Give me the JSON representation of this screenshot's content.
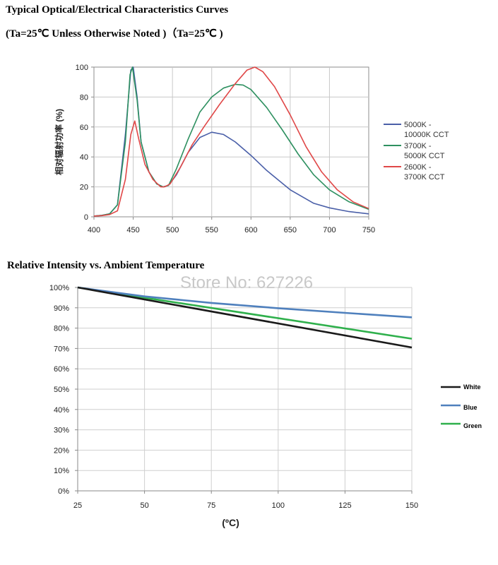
{
  "header": {
    "line1": "Typical Optical/Electrical Characteristics Curves",
    "line2": "(Ta=25℃ Unless Otherwise Noted )（Ta=25℃ )",
    "section2_title": "Relative Intensity vs. Ambient Temperature"
  },
  "watermark": "Store No: 627226",
  "chart_data": [
    {
      "type": "line",
      "title": "",
      "xlabel": "",
      "ylabel": "相对辐射功率 (%)",
      "xlim": [
        400,
        750
      ],
      "ylim": [
        0,
        100
      ],
      "x_ticks": [
        "400",
        "450",
        "500",
        "550",
        "600",
        "650",
        "700",
        "750"
      ],
      "y_ticks": [
        "0",
        "20",
        "40",
        "60",
        "80",
        "100"
      ],
      "grid": true,
      "legend": "right",
      "series": [
        {
          "name": "5000K - 10000K CCT",
          "legend_lines": [
            "5000K -",
            "10000K CCT"
          ],
          "color": "#4a5fa8",
          "points": [
            [
              400,
              0.5
            ],
            [
              410,
              1
            ],
            [
              420,
              2
            ],
            [
              430,
              8
            ],
            [
              440,
              55
            ],
            [
              447,
              98
            ],
            [
              450,
              100
            ],
            [
              455,
              80
            ],
            [
              460,
              50
            ],
            [
              470,
              30
            ],
            [
              480,
              22
            ],
            [
              488,
              20
            ],
            [
              495,
              21
            ],
            [
              505,
              28
            ],
            [
              520,
              43
            ],
            [
              535,
              53
            ],
            [
              550,
              56.5
            ],
            [
              565,
              55
            ],
            [
              580,
              50
            ],
            [
              600,
              41
            ],
            [
              620,
              31
            ],
            [
              650,
              18
            ],
            [
              680,
              9
            ],
            [
              700,
              6
            ],
            [
              725,
              3.5
            ],
            [
              750,
              2
            ]
          ]
        },
        {
          "name": "3700K - 5000K CCT",
          "legend_lines": [
            "3700K -",
            "5000K CCT"
          ],
          "color": "#2e9060",
          "points": [
            [
              400,
              0.5
            ],
            [
              410,
              1
            ],
            [
              420,
              2
            ],
            [
              430,
              8
            ],
            [
              440,
              50
            ],
            [
              446,
              95
            ],
            [
              449,
              100
            ],
            [
              455,
              78
            ],
            [
              460,
              50
            ],
            [
              470,
              30
            ],
            [
              480,
              22
            ],
            [
              488,
              20
            ],
            [
              495,
              21
            ],
            [
              505,
              32
            ],
            [
              520,
              52
            ],
            [
              535,
              70
            ],
            [
              550,
              80
            ],
            [
              565,
              86
            ],
            [
              580,
              88.5
            ],
            [
              590,
              88
            ],
            [
              600,
              85
            ],
            [
              620,
              73
            ],
            [
              640,
              58
            ],
            [
              660,
              42
            ],
            [
              680,
              28
            ],
            [
              700,
              18
            ],
            [
              725,
              10
            ],
            [
              750,
              5
            ]
          ]
        },
        {
          "name": "2600K - 3700K CCT",
          "legend_lines": [
            "2600K -",
            "3700K CCT"
          ],
          "color": "#e04848",
          "points": [
            [
              400,
              0.5
            ],
            [
              410,
              0.8
            ],
            [
              420,
              1.5
            ],
            [
              430,
              4
            ],
            [
              440,
              25
            ],
            [
              447,
              55
            ],
            [
              452,
              64
            ],
            [
              457,
              52
            ],
            [
              465,
              35
            ],
            [
              475,
              25
            ],
            [
              485,
              20
            ],
            [
              490,
              20
            ],
            [
              497,
              22
            ],
            [
              510,
              33
            ],
            [
              525,
              48
            ],
            [
              540,
              60
            ],
            [
              560,
              75
            ],
            [
              580,
              89
            ],
            [
              595,
              98
            ],
            [
              605,
              100
            ],
            [
              615,
              97
            ],
            [
              630,
              87
            ],
            [
              650,
              68
            ],
            [
              670,
              47
            ],
            [
              690,
              30
            ],
            [
              710,
              18
            ],
            [
              730,
              10
            ],
            [
              750,
              5.5
            ]
          ]
        }
      ]
    },
    {
      "type": "line",
      "title": "Relative Intensity vs. Ambient Temperature",
      "xlabel": "(ºC)",
      "ylabel": "",
      "xlim": [
        25,
        150
      ],
      "ylim": [
        0,
        100
      ],
      "x_ticks": [
        "25",
        "50",
        "75",
        "100",
        "125",
        "150"
      ],
      "y_ticks": [
        "0%",
        "10%",
        "20%",
        "30%",
        "40%",
        "50%",
        "60%",
        "70%",
        "80%",
        "90%",
        "100%"
      ],
      "grid": true,
      "legend": "right",
      "series": [
        {
          "name": "White",
          "color": "#1a1a1a",
          "points": [
            [
              25,
              100
            ],
            [
              150,
              70.5
            ]
          ]
        },
        {
          "name": "Blue",
          "color": "#4f80bd",
          "points": [
            [
              25,
              100
            ],
            [
              50,
              95.6
            ],
            [
              75,
              92.4
            ],
            [
              100,
              89.8
            ],
            [
              125,
              87.5
            ],
            [
              150,
              85.3
            ]
          ]
        },
        {
          "name": "Green",
          "color": "#2fb04c",
          "points": [
            [
              25,
              100
            ],
            [
              150,
              74.8
            ]
          ]
        }
      ]
    }
  ]
}
